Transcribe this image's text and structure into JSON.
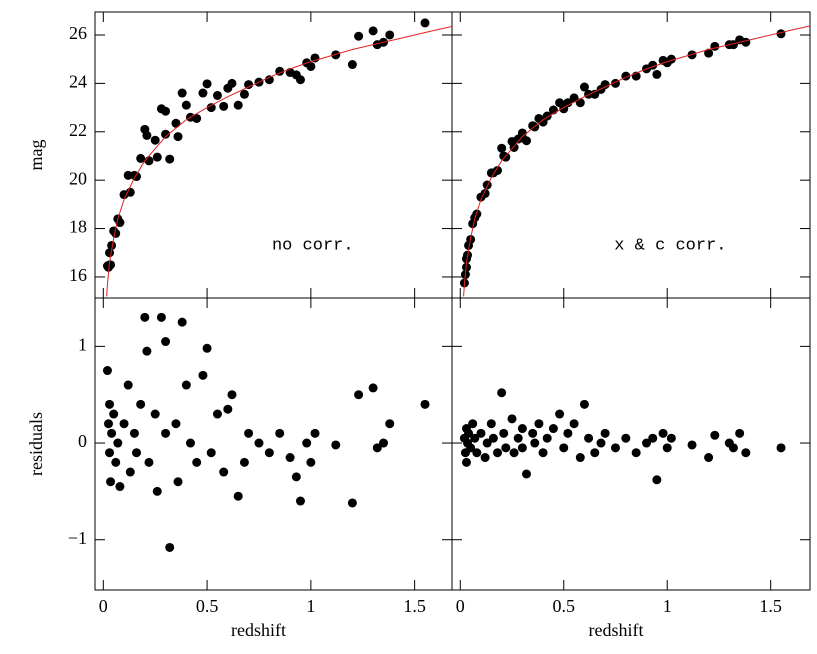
{
  "chart_data": [
    {
      "type": "scatter",
      "ylabel": "mag",
      "annotation": "no corr.",
      "annotation_color": "#2020e0",
      "color": "#000000",
      "ylim": [
        15.13,
        26.95
      ],
      "yticks": [
        16,
        18,
        20,
        22,
        24,
        26
      ],
      "x": [
        0.02,
        0.025,
        0.03,
        0.03,
        0.035,
        0.04,
        0.05,
        0.06,
        0.07,
        0.08,
        0.1,
        0.12,
        0.13,
        0.15,
        0.16,
        0.18,
        0.2,
        0.21,
        0.22,
        0.25,
        0.26,
        0.28,
        0.3,
        0.3,
        0.32,
        0.35,
        0.36,
        0.38,
        0.4,
        0.42,
        0.45,
        0.48,
        0.5,
        0.52,
        0.55,
        0.58,
        0.6,
        0.62,
        0.65,
        0.68,
        0.7,
        0.75,
        0.8,
        0.85,
        0.9,
        0.93,
        0.95,
        0.98,
        1.0,
        1.02,
        1.12,
        1.2,
        1.23,
        1.3,
        1.32,
        1.35,
        1.38,
        1.55
      ],
      "values": [
        16.45,
        16.4,
        16.5,
        17.0,
        16.5,
        17.3,
        17.9,
        17.8,
        18.4,
        18.25,
        19.4,
        20.2,
        19.5,
        20.2,
        20.15,
        20.9,
        22.1,
        21.85,
        20.8,
        21.65,
        20.95,
        22.95,
        22.85,
        21.9,
        20.87,
        22.35,
        21.8,
        23.6,
        23.1,
        22.6,
        22.55,
        23.6,
        23.98,
        23.0,
        23.5,
        23.05,
        23.8,
        24.0,
        23.1,
        23.55,
        23.95,
        24.05,
        24.15,
        24.5,
        24.45,
        24.35,
        24.15,
        24.85,
        24.7,
        25.05,
        25.18,
        24.78,
        25.95,
        26.17,
        25.6,
        25.7,
        26.0,
        26.5
      ],
      "fit_color": "#e02020",
      "fit_x": [
        0.016,
        0.02,
        0.03,
        0.05,
        0.07,
        0.1,
        0.15,
        0.2,
        0.3,
        0.4,
        0.5,
        0.6,
        0.7,
        0.8,
        0.9,
        1.0,
        1.2,
        1.4,
        1.6,
        1.68
      ],
      "fit_values": [
        15.2,
        15.7,
        16.6,
        17.6,
        18.4,
        19.2,
        20.1,
        20.8,
        21.8,
        22.5,
        23.0,
        23.45,
        23.85,
        24.25,
        24.6,
        24.9,
        25.4,
        25.8,
        26.2,
        26.35
      ]
    },
    {
      "type": "scatter",
      "annotation": "x & c corr.",
      "annotation_color": "#2020e0",
      "color": "#000000",
      "x": [
        0.02,
        0.025,
        0.03,
        0.03,
        0.035,
        0.04,
        0.05,
        0.06,
        0.07,
        0.08,
        0.1,
        0.12,
        0.13,
        0.15,
        0.16,
        0.18,
        0.2,
        0.21,
        0.22,
        0.25,
        0.26,
        0.28,
        0.3,
        0.3,
        0.32,
        0.35,
        0.36,
        0.38,
        0.4,
        0.42,
        0.45,
        0.48,
        0.5,
        0.52,
        0.55,
        0.58,
        0.6,
        0.62,
        0.65,
        0.68,
        0.7,
        0.75,
        0.8,
        0.85,
        0.9,
        0.93,
        0.95,
        0.98,
        1.0,
        1.02,
        1.12,
        1.2,
        1.23,
        1.3,
        1.32,
        1.35,
        1.38,
        1.55
      ],
      "values": [
        15.75,
        16.1,
        16.75,
        16.4,
        16.9,
        17.3,
        17.55,
        18.2,
        18.45,
        18.6,
        19.3,
        19.45,
        19.8,
        20.3,
        20.3,
        20.4,
        21.32,
        21.0,
        20.95,
        21.6,
        21.35,
        21.7,
        21.95,
        21.75,
        21.63,
        22.25,
        22.2,
        22.55,
        22.4,
        22.65,
        22.9,
        23.2,
        22.95,
        23.2,
        23.4,
        23.2,
        23.85,
        23.55,
        23.55,
        23.75,
        23.95,
        24.0,
        24.3,
        24.3,
        24.6,
        24.75,
        24.37,
        24.95,
        24.85,
        25.0,
        25.18,
        25.25,
        25.53,
        25.6,
        25.6,
        25.8,
        25.7,
        26.05
      ],
      "fit_color": "#e02020",
      "fit_x": [
        0.016,
        0.02,
        0.03,
        0.05,
        0.07,
        0.1,
        0.15,
        0.2,
        0.3,
        0.4,
        0.5,
        0.6,
        0.7,
        0.8,
        0.9,
        1.0,
        1.2,
        1.4,
        1.6,
        1.69
      ],
      "fit_values": [
        15.2,
        15.7,
        16.6,
        17.6,
        18.4,
        19.2,
        20.1,
        20.8,
        21.8,
        22.5,
        23.0,
        23.45,
        23.85,
        24.25,
        24.6,
        24.9,
        25.4,
        25.8,
        26.2,
        26.37
      ]
    },
    {
      "type": "scatter",
      "xlabel": "redshift",
      "ylabel": "residuals",
      "color": "#000000",
      "xlim": [
        -0.04,
        1.68
      ],
      "xticks": [
        0,
        0.5,
        1,
        1.5
      ],
      "ylim": [
        -1.52,
        1.5
      ],
      "yticks": [
        {
          "value": -1,
          "label": "−1"
        },
        0,
        1
      ],
      "x": [
        0.02,
        0.025,
        0.03,
        0.03,
        0.035,
        0.04,
        0.05,
        0.06,
        0.07,
        0.08,
        0.1,
        0.12,
        0.13,
        0.15,
        0.16,
        0.18,
        0.2,
        0.21,
        0.22,
        0.25,
        0.26,
        0.28,
        0.3,
        0.3,
        0.32,
        0.35,
        0.36,
        0.38,
        0.4,
        0.42,
        0.45,
        0.48,
        0.5,
        0.52,
        0.55,
        0.58,
        0.6,
        0.62,
        0.65,
        0.68,
        0.7,
        0.75,
        0.8,
        0.85,
        0.9,
        0.93,
        0.95,
        0.98,
        1.0,
        1.02,
        1.12,
        1.2,
        1.23,
        1.3,
        1.32,
        1.35,
        1.38,
        1.55
      ],
      "values": [
        0.75,
        0.2,
        -0.1,
        0.4,
        -0.4,
        0.1,
        0.3,
        -0.2,
        0.0,
        -0.45,
        0.2,
        0.6,
        -0.3,
        0.1,
        -0.1,
        0.4,
        1.3,
        0.95,
        -0.2,
        0.3,
        -0.5,
        1.3,
        1.05,
        0.1,
        -1.08,
        0.2,
        -0.4,
        1.25,
        0.6,
        0.0,
        -0.2,
        0.7,
        0.98,
        -0.1,
        0.3,
        -0.3,
        0.35,
        0.5,
        -0.55,
        -0.2,
        0.1,
        0.0,
        -0.1,
        0.1,
        -0.15,
        -0.35,
        -0.6,
        0.0,
        -0.2,
        0.1,
        -0.02,
        -0.62,
        0.5,
        0.57,
        -0.05,
        0.0,
        0.2,
        0.4
      ]
    },
    {
      "type": "scatter",
      "xlabel": "redshift",
      "color": "#000000",
      "xlim": [
        -0.04,
        1.69
      ],
      "xticks": [
        0,
        0.5,
        1,
        1.5
      ],
      "x": [
        0.02,
        0.025,
        0.03,
        0.03,
        0.035,
        0.04,
        0.05,
        0.06,
        0.07,
        0.08,
        0.1,
        0.12,
        0.13,
        0.15,
        0.16,
        0.18,
        0.2,
        0.21,
        0.22,
        0.25,
        0.26,
        0.28,
        0.3,
        0.3,
        0.32,
        0.35,
        0.36,
        0.38,
        0.4,
        0.42,
        0.45,
        0.48,
        0.5,
        0.52,
        0.55,
        0.58,
        0.6,
        0.62,
        0.65,
        0.68,
        0.7,
        0.75,
        0.8,
        0.85,
        0.9,
        0.93,
        0.95,
        0.98,
        1.0,
        1.02,
        1.12,
        1.2,
        1.23,
        1.3,
        1.32,
        1.35,
        1.38,
        1.55
      ],
      "values": [
        0.05,
        -0.1,
        0.15,
        -0.2,
        0.0,
        0.1,
        -0.05,
        0.2,
        0.05,
        -0.1,
        0.1,
        -0.15,
        0.0,
        0.2,
        0.05,
        -0.1,
        0.52,
        0.1,
        -0.05,
        0.25,
        -0.1,
        0.05,
        0.15,
        -0.05,
        -0.32,
        0.1,
        0.0,
        0.2,
        -0.1,
        0.05,
        0.15,
        0.3,
        -0.05,
        0.1,
        0.2,
        -0.15,
        0.4,
        0.05,
        -0.1,
        0.0,
        0.1,
        -0.05,
        0.05,
        -0.1,
        0.0,
        0.05,
        -0.38,
        0.1,
        -0.05,
        0.05,
        -0.02,
        -0.15,
        0.08,
        0.0,
        -0.05,
        0.1,
        -0.1,
        -0.05
      ]
    }
  ]
}
